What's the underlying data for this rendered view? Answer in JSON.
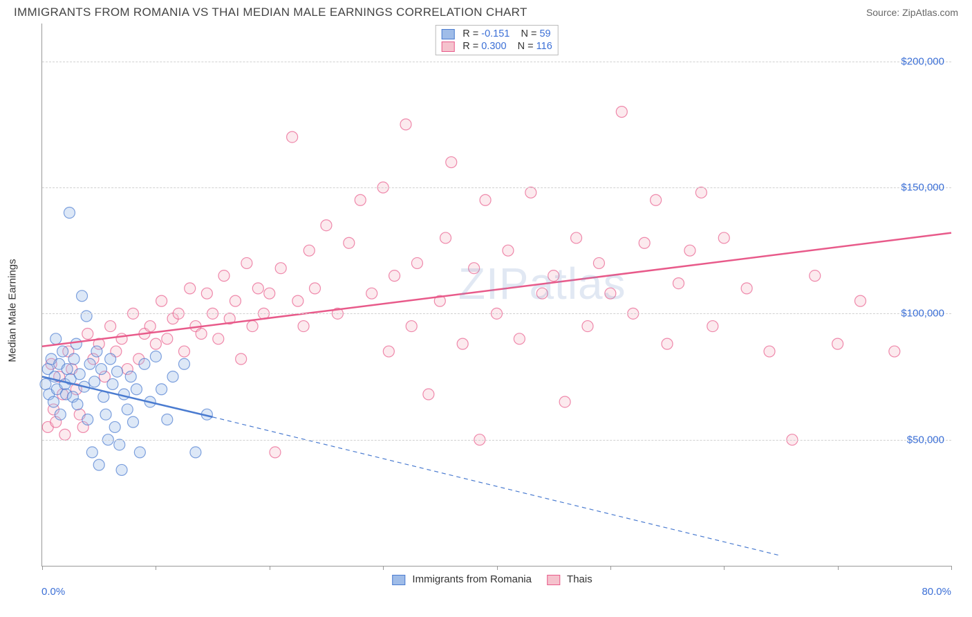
{
  "header": {
    "title": "IMMIGRANTS FROM ROMANIA VS THAI MEDIAN MALE EARNINGS CORRELATION CHART",
    "source": "Source: ZipAtlas.com"
  },
  "watermark": "ZIPatlas",
  "chart": {
    "type": "scatter",
    "ylabel": "Median Male Earnings",
    "xlim": [
      0,
      80
    ],
    "ylim": [
      0,
      215000
    ],
    "xtick_positions": [
      0,
      10,
      20,
      30,
      40,
      50,
      60,
      70,
      80
    ],
    "xtick_labels": {
      "start": "0.0%",
      "end": "80.0%"
    },
    "ytick_positions": [
      50000,
      100000,
      150000,
      200000
    ],
    "ytick_labels": [
      "$50,000",
      "$100,000",
      "$150,000",
      "$200,000"
    ],
    "background_color": "#ffffff",
    "grid_color": "#d0d0d0",
    "axis_color": "#999999",
    "label_color": "#3b6fd6",
    "marker_radius": 8,
    "marker_opacity": 0.35,
    "marker_stroke_width": 1.2,
    "trend_line_width": 2.5,
    "trend_dash_width": 1.2
  },
  "series": {
    "romania": {
      "label": "Immigrants from Romania",
      "color_fill": "#9fbce8",
      "color_stroke": "#4a7bd0",
      "R": "-0.151",
      "N": "59",
      "trend": {
        "x1": 0,
        "y1": 75000,
        "x2": 15,
        "y2": 59000,
        "dash_x2": 65,
        "dash_y2": 4000
      },
      "points": [
        [
          0.3,
          72000
        ],
        [
          0.5,
          78000
        ],
        [
          0.6,
          68000
        ],
        [
          0.8,
          82000
        ],
        [
          1.0,
          65000
        ],
        [
          1.1,
          75000
        ],
        [
          1.2,
          90000
        ],
        [
          1.3,
          70000
        ],
        [
          1.5,
          80000
        ],
        [
          1.6,
          60000
        ],
        [
          1.8,
          85000
        ],
        [
          2.0,
          72000
        ],
        [
          2.1,
          68000
        ],
        [
          2.2,
          78000
        ],
        [
          2.4,
          140000
        ],
        [
          2.5,
          74000
        ],
        [
          2.7,
          67000
        ],
        [
          2.8,
          82000
        ],
        [
          3.0,
          88000
        ],
        [
          3.1,
          64000
        ],
        [
          3.3,
          76000
        ],
        [
          3.5,
          107000
        ],
        [
          3.7,
          71000
        ],
        [
          3.9,
          99000
        ],
        [
          4.0,
          58000
        ],
        [
          4.2,
          80000
        ],
        [
          4.4,
          45000
        ],
        [
          4.6,
          73000
        ],
        [
          4.8,
          85000
        ],
        [
          5.0,
          40000
        ],
        [
          5.2,
          78000
        ],
        [
          5.4,
          67000
        ],
        [
          5.6,
          60000
        ],
        [
          5.8,
          50000
        ],
        [
          6.0,
          82000
        ],
        [
          6.2,
          72000
        ],
        [
          6.4,
          55000
        ],
        [
          6.6,
          77000
        ],
        [
          6.8,
          48000
        ],
        [
          7.0,
          38000
        ],
        [
          7.2,
          68000
        ],
        [
          7.5,
          62000
        ],
        [
          7.8,
          75000
        ],
        [
          8.0,
          57000
        ],
        [
          8.3,
          70000
        ],
        [
          8.6,
          45000
        ],
        [
          9.0,
          80000
        ],
        [
          9.5,
          65000
        ],
        [
          10.0,
          83000
        ],
        [
          10.5,
          70000
        ],
        [
          11.0,
          58000
        ],
        [
          11.5,
          75000
        ],
        [
          12.5,
          80000
        ],
        [
          13.5,
          45000
        ],
        [
          14.5,
          60000
        ]
      ]
    },
    "thais": {
      "label": "Thais",
      "color_fill": "#f5c2cd",
      "color_stroke": "#e85a8a",
      "R": "0.300",
      "N": "116",
      "trend": {
        "x1": 0,
        "y1": 87000,
        "x2": 80,
        "y2": 132000
      },
      "points": [
        [
          0.5,
          55000
        ],
        [
          0.8,
          80000
        ],
        [
          1.0,
          62000
        ],
        [
          1.2,
          57000
        ],
        [
          1.5,
          75000
        ],
        [
          1.8,
          68000
        ],
        [
          2.0,
          52000
        ],
        [
          2.3,
          85000
        ],
        [
          2.6,
          78000
        ],
        [
          3.0,
          70000
        ],
        [
          3.3,
          60000
        ],
        [
          3.6,
          55000
        ],
        [
          4.0,
          92000
        ],
        [
          4.5,
          82000
        ],
        [
          5.0,
          88000
        ],
        [
          5.5,
          75000
        ],
        [
          6.0,
          95000
        ],
        [
          6.5,
          85000
        ],
        [
          7.0,
          90000
        ],
        [
          7.5,
          78000
        ],
        [
          8.0,
          100000
        ],
        [
          8.5,
          82000
        ],
        [
          9.0,
          92000
        ],
        [
          9.5,
          95000
        ],
        [
          10.0,
          88000
        ],
        [
          10.5,
          105000
        ],
        [
          11.0,
          90000
        ],
        [
          11.5,
          98000
        ],
        [
          12.0,
          100000
        ],
        [
          12.5,
          85000
        ],
        [
          13.0,
          110000
        ],
        [
          13.5,
          95000
        ],
        [
          14.0,
          92000
        ],
        [
          14.5,
          108000
        ],
        [
          15.0,
          100000
        ],
        [
          15.5,
          90000
        ],
        [
          16.0,
          115000
        ],
        [
          16.5,
          98000
        ],
        [
          17.0,
          105000
        ],
        [
          17.5,
          82000
        ],
        [
          18.0,
          120000
        ],
        [
          18.5,
          95000
        ],
        [
          19.0,
          110000
        ],
        [
          19.5,
          100000
        ],
        [
          20.0,
          108000
        ],
        [
          20.5,
          45000
        ],
        [
          21.0,
          118000
        ],
        [
          22.0,
          170000
        ],
        [
          22.5,
          105000
        ],
        [
          23.0,
          95000
        ],
        [
          23.5,
          125000
        ],
        [
          24.0,
          110000
        ],
        [
          25.0,
          135000
        ],
        [
          26.0,
          100000
        ],
        [
          27.0,
          128000
        ],
        [
          28.0,
          145000
        ],
        [
          29.0,
          108000
        ],
        [
          30.0,
          150000
        ],
        [
          30.5,
          85000
        ],
        [
          31.0,
          115000
        ],
        [
          32.0,
          175000
        ],
        [
          32.5,
          95000
        ],
        [
          33.0,
          120000
        ],
        [
          34.0,
          68000
        ],
        [
          35.0,
          105000
        ],
        [
          35.5,
          130000
        ],
        [
          36.0,
          160000
        ],
        [
          37.0,
          88000
        ],
        [
          38.0,
          118000
        ],
        [
          38.5,
          50000
        ],
        [
          39.0,
          145000
        ],
        [
          40.0,
          100000
        ],
        [
          41.0,
          125000
        ],
        [
          42.0,
          90000
        ],
        [
          43.0,
          148000
        ],
        [
          44.0,
          108000
        ],
        [
          45.0,
          115000
        ],
        [
          46.0,
          65000
        ],
        [
          47.0,
          130000
        ],
        [
          48.0,
          95000
        ],
        [
          49.0,
          120000
        ],
        [
          50.0,
          108000
        ],
        [
          51.0,
          180000
        ],
        [
          52.0,
          100000
        ],
        [
          53.0,
          128000
        ],
        [
          54.0,
          145000
        ],
        [
          55.0,
          88000
        ],
        [
          56.0,
          112000
        ],
        [
          57.0,
          125000
        ],
        [
          58.0,
          148000
        ],
        [
          59.0,
          95000
        ],
        [
          60.0,
          130000
        ],
        [
          62.0,
          110000
        ],
        [
          64.0,
          85000
        ],
        [
          66.0,
          50000
        ],
        [
          68.0,
          115000
        ],
        [
          70.0,
          88000
        ],
        [
          72.0,
          105000
        ],
        [
          75.0,
          85000
        ]
      ]
    }
  },
  "legend_top": {
    "r_label": "R =",
    "n_label": "N ="
  }
}
